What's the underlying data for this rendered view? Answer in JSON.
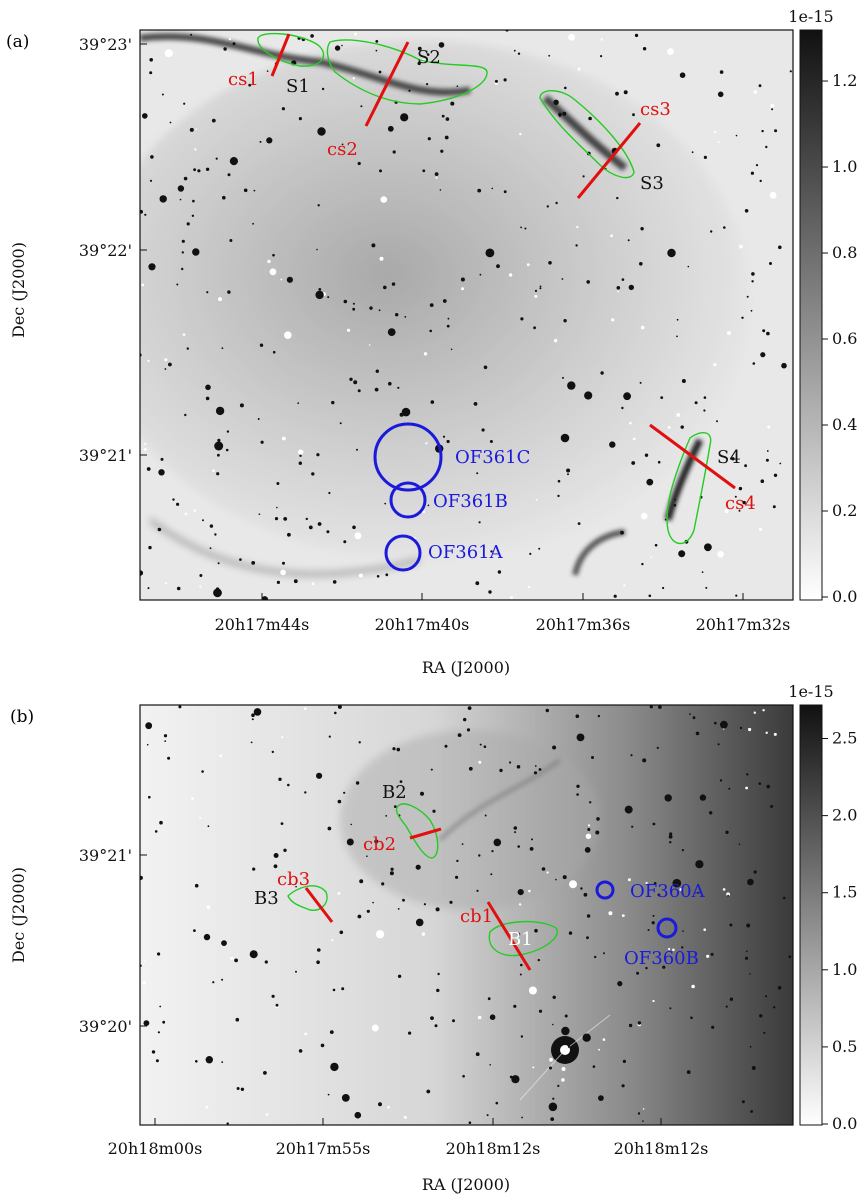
{
  "panel_a": {
    "label": "(a)",
    "y_title": "Dec (J2000)",
    "x_title": "RA (J2000)",
    "y_ticks": [
      "39°23'",
      "39°22'",
      "39°21'"
    ],
    "x_ticks": [
      "20h17m44s",
      "20h17m40s",
      "20h17m36s",
      "20h17m32s"
    ],
    "colorbar_scale": "1e-15",
    "colorbar_ticks": [
      "1.2",
      "1.0",
      "0.8",
      "0.6",
      "0.4",
      "0.2",
      "0.0"
    ],
    "annotations": {
      "S1": "S1",
      "S2": "S2",
      "S3": "S3",
      "S4": "S4",
      "cs1": "cs1",
      "cs2": "cs2",
      "cs3": "cs3",
      "cs4": "cs4",
      "OF361A": "OF361A",
      "OF361B": "OF361B",
      "OF361C": "OF361C"
    }
  },
  "panel_b": {
    "label": "(b)",
    "y_title": "Dec (J2000)",
    "x_title": "RA (J2000)",
    "y_ticks": [
      "39°21'",
      "39°20'"
    ],
    "x_ticks": [
      "20h18m00s",
      "20h17m55s",
      "20h18m12s",
      "20h18m12s"
    ],
    "colorbar_scale": "1e-15",
    "colorbar_ticks": [
      "2.5",
      "2.0",
      "1.5",
      "1.0",
      "0.5",
      "0.0"
    ],
    "annotations": {
      "B1": "B1",
      "B2": "B2",
      "B3": "B3",
      "cb1": "cb1",
      "cb2": "cb2",
      "cb3": "cb3",
      "OF360A": "OF360A",
      "OF360B": "OF360B"
    }
  },
  "colors": {
    "contour": "#22cc22",
    "cut": "#e01010",
    "outflow": "#1a1adc",
    "label_dark": "#111111",
    "label_light": "#ffffff"
  }
}
